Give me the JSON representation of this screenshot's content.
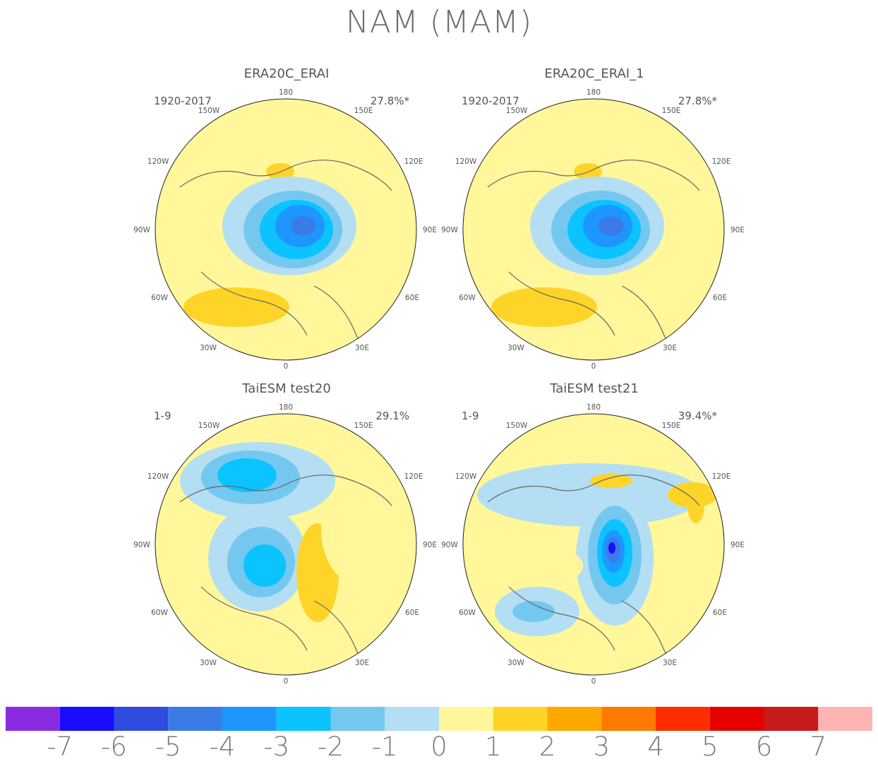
{
  "title": "NAM (MAM)",
  "panels": [
    {
      "title": "ERA20C_ERAI",
      "period": "1920-2017",
      "variance": "27.8%*"
    },
    {
      "title": "ERA20C_ERAI_1",
      "period": "1920-2017",
      "variance": "27.8%*"
    },
    {
      "title": "TaiESM test20",
      "period": "1-9",
      "variance": "29.1%"
    },
    {
      "title": "TaiESM test21",
      "period": "1-9",
      "variance": "39.4%*"
    }
  ],
  "longitude_labels": {
    "top": "180",
    "bottom": "0",
    "left_90": "90W",
    "right_90": "90E",
    "upper_left_150": "150W",
    "upper_right_150": "150E",
    "upper_left_120": "120W",
    "upper_right_120": "120E",
    "lower_left_60": "60W",
    "lower_right_60": "60E",
    "lower_left_30": "30W",
    "lower_right_30": "30E"
  },
  "colorbar": {
    "labels": [
      "-7",
      "-6",
      "-5",
      "-4",
      "-3",
      "-2",
      "-1",
      "0",
      "1",
      "2",
      "3",
      "4",
      "5",
      "6",
      "7"
    ],
    "colors": [
      "#8a2be2",
      "#1a0cff",
      "#2f4be0",
      "#3a7be8",
      "#1e96ff",
      "#0ac3ff",
      "#74c8f0",
      "#b4def4",
      "#fff79a",
      "#ffd428",
      "#ffa800",
      "#ff7a00",
      "#ff2e00",
      "#e60000",
      "#c81a1a",
      "#ffb4b4"
    ]
  }
}
